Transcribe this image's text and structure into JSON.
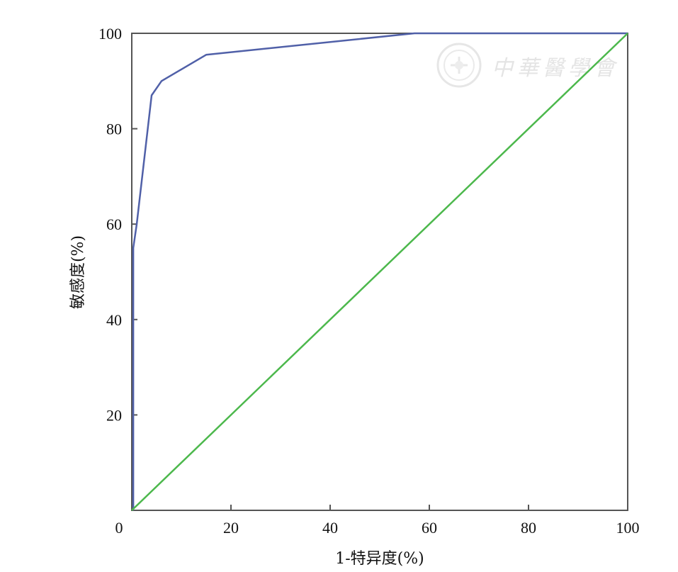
{
  "chart_data": {
    "type": "line",
    "title": "",
    "xlabel": "1-特异度(%)",
    "ylabel": "敏感度(%)",
    "xlim": [
      0,
      100
    ],
    "ylim": [
      0,
      100
    ],
    "x_ticks": [
      0,
      20,
      40,
      60,
      80,
      100
    ],
    "y_ticks": [
      20,
      40,
      60,
      80,
      100
    ],
    "x_tick_labels": [
      "0",
      "20",
      "40",
      "60",
      "80",
      "100"
    ],
    "y_tick_labels": [
      "20",
      "40",
      "60",
      "80",
      "100"
    ],
    "grid": false,
    "legend": "none",
    "series": [
      {
        "role": "roc-curve",
        "color": "#5060a8",
        "x": [
          0.3,
          0.3,
          0.3,
          1.0,
          4.0,
          6.0,
          15.0,
          57.0,
          100.0
        ],
        "y": [
          0,
          20,
          55,
          60,
          87,
          90,
          95.5,
          100,
          100
        ]
      },
      {
        "role": "reference-line",
        "color": "#4cb84c",
        "x": [
          0,
          100
        ],
        "y": [
          0,
          100
        ]
      }
    ]
  },
  "watermark": {
    "text": "中華醫學會",
    "emblem": "medical-association-emblem"
  },
  "colors": {
    "axis": "#555555",
    "roc": "#5060a8",
    "reference": "#4cb84c",
    "watermark": "#e2e2e2"
  }
}
